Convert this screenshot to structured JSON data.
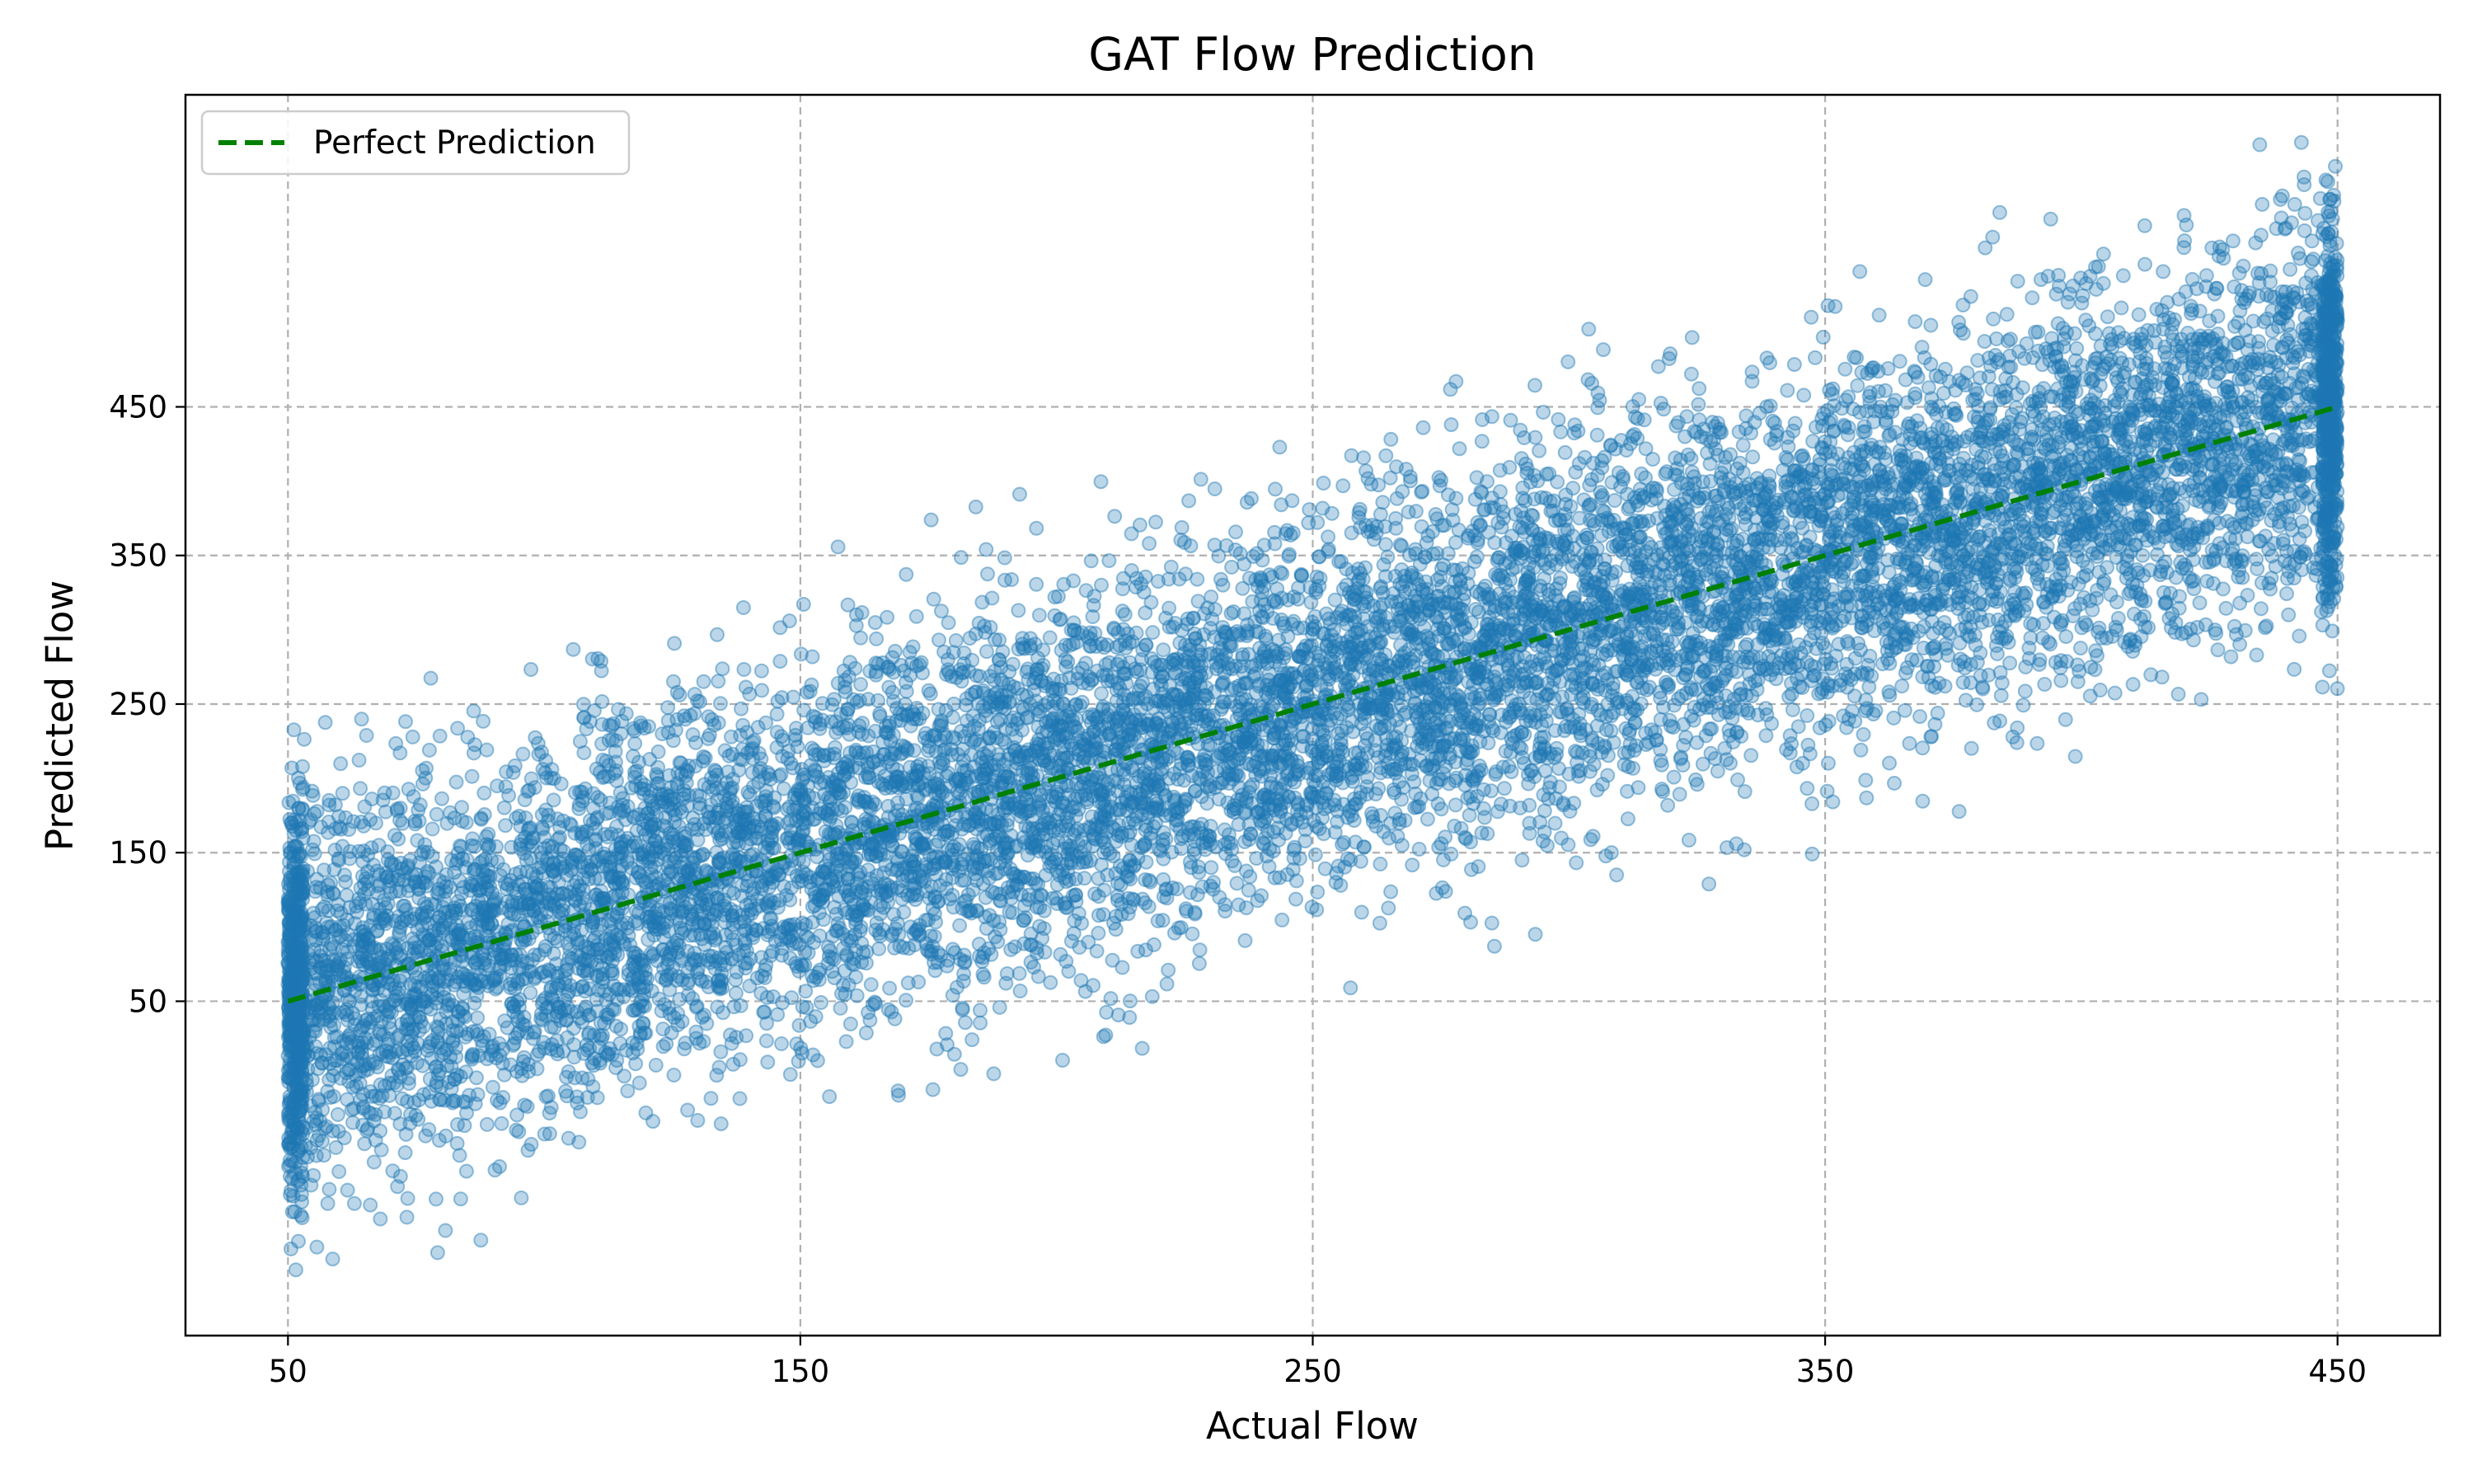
{
  "chart_data": {
    "type": "scatter",
    "title": "GAT Flow Prediction",
    "xlabel": "Actual Flow",
    "ylabel": "Predicted Flow",
    "xlim": [
      30,
      470
    ],
    "ylim": [
      -175,
      660
    ],
    "xticks": [
      50,
      150,
      250,
      350,
      450
    ],
    "yticks": [
      50,
      150,
      250,
      350,
      450
    ],
    "xtick_labels": [
      "50",
      "150",
      "250",
      "350",
      "450"
    ],
    "ytick_labels": [
      "50",
      "150",
      "250",
      "350",
      "450"
    ],
    "grid": true,
    "legend_position": "upper-left",
    "point_color": "#1f77b4",
    "reference_color": "#008000",
    "series": [
      {
        "kind": "scatter",
        "description_count": 12000,
        "trend": {
          "slope": 1.0,
          "intercept": 0
        },
        "noise_sd": 62,
        "x_range": [
          50,
          450
        ]
      },
      {
        "kind": "line",
        "name": "Perfect Prediction",
        "x": [
          50,
          450
        ],
        "y": [
          50,
          450
        ]
      }
    ]
  }
}
